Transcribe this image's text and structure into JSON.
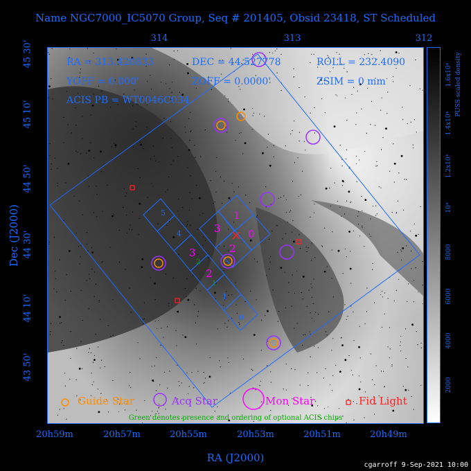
{
  "title": "Name NGC7000_IC5070 Group, Seq # 201405, Obsid 23418, ST Scheduled",
  "axes": {
    "xlabel": "RA (J2000)",
    "ylabel": "Dec (J2000)",
    "top_ticks": [
      "314",
      "313",
      "312"
    ],
    "bottom_ticks": [
      "20h59m",
      "20h57m",
      "20h55m",
      "20h53m",
      "20h51m",
      "20h49m"
    ],
    "left_ticks": [
      "45 30'",
      "45 10'",
      "44 50'",
      "44 30'",
      "44 10'",
      "43 50'"
    ]
  },
  "info": {
    "ra": "RA = 313.420833",
    "dec": "DEC = 44.527778",
    "roll": "ROLL = 232.4090",
    "yoff": "YOFF =   0.000'",
    "zoff": "ZOFF =   0.0000'",
    "zsim": "ZSIM = 0 mm",
    "acis_pb": "ACIS PB = WT0046C034"
  },
  "colorbar": {
    "label": "PUSS scaled density",
    "ticks": [
      "2000",
      "4000",
      "6000",
      "8000",
      "10⁴",
      "1.2x10⁴",
      "1.4x10⁴",
      "1.6x10⁴"
    ]
  },
  "chips": {
    "primary": [
      "5",
      "4",
      "3",
      "2",
      "1",
      "0"
    ],
    "secondary": [
      "1",
      "3",
      "0",
      "2",
      "3",
      "2"
    ],
    "optional": [
      "2",
      "1"
    ]
  },
  "legend": {
    "guide_star": "Guide Star",
    "acq_star": "Acq Star",
    "mon_star": "Mon Star",
    "fid_light": "Fid Light"
  },
  "note": "Green denotes presence and ordering of optional ACIS chips",
  "footer": "cgarroff  9-Sep-2021 10:00",
  "colors": {
    "axis": "#1e6cff",
    "guide": "#ff8c00",
    "acq": "#9b30ff",
    "mon": "#ff00ff",
    "fid": "#ff2020",
    "optional": "#00aa00"
  }
}
